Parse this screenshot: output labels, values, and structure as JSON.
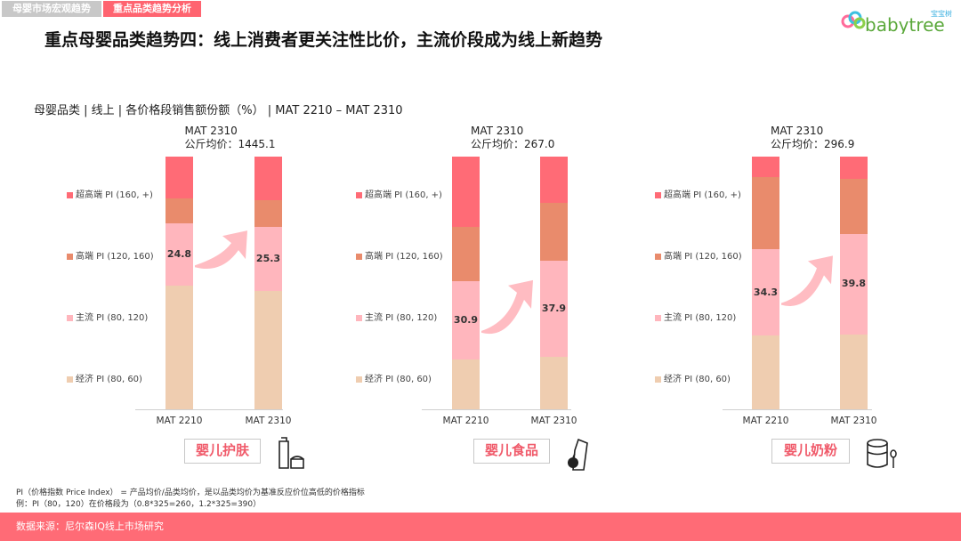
{
  "tabs": [
    {
      "label": "母婴市场宏观趋势",
      "active": false
    },
    {
      "label": "重点品类趋势分析",
      "active": true
    }
  ],
  "title": "重点母婴品类趋势四：线上消费者更关注性比价，主流价段成为线上新趋势",
  "logo": {
    "text": "babytree",
    "cn": "宝宝树"
  },
  "subtitle": "母婴品类 | 线上 | 各价格段销售额份额（%） | MAT 2210 – MAT 2310",
  "colors": {
    "super_high": "#ff6b76",
    "high": "#e98b6c",
    "mainstream": "#ffb6bd",
    "economy": "#efcdb0",
    "arrow": "#ffbcc2",
    "accent": "#ff6470"
  },
  "chart_data": [
    {
      "type": "bar",
      "stacked": true,
      "category": "婴儿护肤",
      "icon": "skincare-bottle-icon",
      "header": {
        "period": "MAT 2310",
        "price": "公斤均价：1445.1"
      },
      "categories": [
        "MAT 2210",
        "MAT 2310"
      ],
      "ylim": [
        0,
        100
      ],
      "series": [
        {
          "name": "经济 PI (80, 60)",
          "key": "economy",
          "values": [
            48.8,
            46.8
          ]
        },
        {
          "name": "主流 PI (80, 120)",
          "key": "mainstream",
          "values": [
            24.8,
            25.3
          ],
          "labels": [
            "24.8",
            "25.3"
          ]
        },
        {
          "name": "高端 PI (120, 160)",
          "key": "high",
          "values": [
            9.9,
            10.6
          ]
        },
        {
          "name": "超高端 PI (160, +)",
          "key": "super_high",
          "values": [
            16.5,
            17.3
          ]
        }
      ]
    },
    {
      "type": "bar",
      "stacked": true,
      "category": "婴儿食品",
      "icon": "baby-food-icon",
      "header": {
        "period": "MAT 2310",
        "price": "公斤均价：267.0"
      },
      "categories": [
        "MAT 2210",
        "MAT 2310"
      ],
      "ylim": [
        0,
        100
      ],
      "series": [
        {
          "name": "经济 PI (80, 60)",
          "key": "economy",
          "values": [
            19.8,
            20.9
          ]
        },
        {
          "name": "主流 PI (80, 120)",
          "key": "mainstream",
          "values": [
            30.9,
            37.9
          ],
          "labels": [
            "30.9",
            "37.9"
          ]
        },
        {
          "name": "高端 PI (120, 160)",
          "key": "high",
          "values": [
            21.5,
            22.9
          ]
        },
        {
          "name": "超高端 PI (160, +)",
          "key": "super_high",
          "values": [
            27.8,
            18.3
          ]
        }
      ]
    },
    {
      "type": "bar",
      "stacked": true,
      "category": "婴儿奶粉",
      "icon": "formula-can-icon",
      "header": {
        "period": "MAT 2310",
        "price": "公斤均价：296.9"
      },
      "categories": [
        "MAT 2210",
        "MAT 2310"
      ],
      "ylim": [
        0,
        100
      ],
      "series": [
        {
          "name": "经济 PI (80, 60)",
          "key": "economy",
          "values": [
            29.1,
            29.6
          ]
        },
        {
          "name": "主流 PI (80, 120)",
          "key": "mainstream",
          "values": [
            34.3,
            39.8
          ],
          "labels": [
            "34.3",
            "39.8"
          ]
        },
        {
          "name": "高端 PI (120, 160)",
          "key": "high",
          "values": [
            28.5,
            21.8
          ]
        },
        {
          "name": "超高端 PI (160, +)",
          "key": "super_high",
          "values": [
            8.1,
            8.8
          ]
        }
      ]
    }
  ],
  "notes": [
    "PI（价格指数 Price Index） = 产品均价/品类均价，是以品类均价为基准反应价位高低的价格指标",
    "例：PI（80，120）在价格段为（0.8*325=260，1.2*325=390）"
  ],
  "footer": "数据来源：尼尔森IQ线上市场研究"
}
